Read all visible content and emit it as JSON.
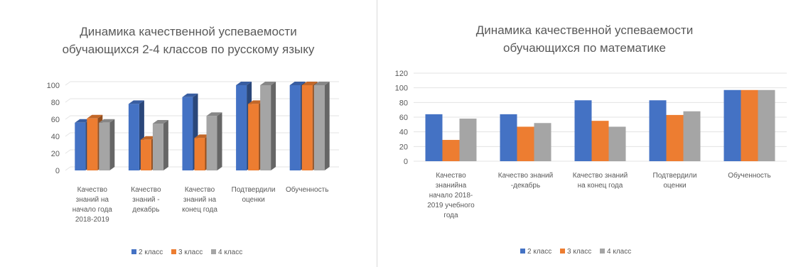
{
  "colors": {
    "series": [
      "#4472c4",
      "#ed7d31",
      "#a5a5a5"
    ]
  },
  "chart_data": [
    {
      "type": "bar",
      "style": "3d-clustered-column",
      "title": "Динамика качественной успеваемости обучающихся 2-4 классов по русскому языку",
      "title_lines": [
        "Динамика качественной успеваемости",
        "обучающихся 2-4 классов по русскому языку"
      ],
      "categories": [
        "Качество знаний на начало года 2018-2019",
        "Качество знаний - декабрь",
        "Качество знаний на конец года",
        "Подтвердили оценки",
        "Обученность"
      ],
      "category_lines": [
        [
          "Качество",
          "знаний на",
          "начало года",
          "2018-2019"
        ],
        [
          "Качество",
          "знаний -",
          "декабрь"
        ],
        [
          "Качество",
          "знаний на",
          "конец года"
        ],
        [
          "Подтвердили",
          "оценки"
        ],
        [
          "Обученность"
        ]
      ],
      "series": [
        {
          "name": "2 класс",
          "values": [
            56,
            78,
            86,
            100,
            100
          ]
        },
        {
          "name": "3 класс",
          "values": [
            61,
            36,
            38,
            78,
            100
          ]
        },
        {
          "name": "4 класс",
          "values": [
            56,
            55,
            64,
            100,
            100
          ]
        }
      ],
      "yticks": [
        "0",
        "20",
        "40",
        "60",
        "80",
        "100"
      ],
      "ylim": [
        0,
        100
      ],
      "legend": "bottom",
      "grid": true
    },
    {
      "type": "bar",
      "style": "clustered-column",
      "title": "Динамика качественной успеваемости обучающихся по математике",
      "title_lines": [
        "Динамика качественной успеваемости",
        "обучающихся по математике"
      ],
      "categories": [
        "Качество знанийна начало 2018-2019 учебного года",
        "Качество знаний -декабрь",
        "Качество знаний на конец года",
        "Подтвердили оценки",
        "Обученность"
      ],
      "category_lines": [
        [
          "Качество",
          "знанийна",
          "начало 2018-",
          "2019 учебного",
          "года"
        ],
        [
          "Качество знаний",
          "-декабрь"
        ],
        [
          "Качество знаний",
          "на конец года"
        ],
        [
          "Подтвердили",
          "оценки"
        ],
        [
          "Обученность"
        ]
      ],
      "series": [
        {
          "name": "2 класс",
          "values": [
            64,
            64,
            83,
            83,
            97
          ]
        },
        {
          "name": "3 класс",
          "values": [
            29,
            47,
            55,
            63,
            97
          ]
        },
        {
          "name": "4 класс",
          "values": [
            58,
            52,
            47,
            68,
            97
          ]
        }
      ],
      "yticks": [
        "0",
        "20",
        "40",
        "60",
        "80",
        "100",
        "120"
      ],
      "ylim": [
        0,
        120
      ],
      "legend": "bottom",
      "grid": true
    }
  ]
}
